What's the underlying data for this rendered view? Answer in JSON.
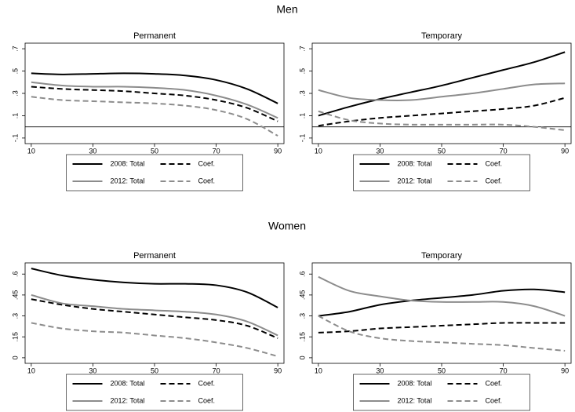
{
  "section_titles": [
    "Men",
    "Women"
  ],
  "chart_data": [
    {
      "type": "line",
      "title": "Permanent",
      "x": [
        10,
        20,
        30,
        40,
        50,
        60,
        70,
        80,
        90
      ],
      "xlim": [
        8,
        92
      ],
      "xticks": [
        10,
        30,
        50,
        70,
        90
      ],
      "ylim": [
        -0.15,
        0.75
      ],
      "yticks": [
        {
          "value": -0.1,
          "label": "-.1"
        },
        {
          "value": 0.1,
          "label": ".1"
        },
        {
          "value": 0.3,
          "label": ".3"
        },
        {
          "value": 0.5,
          "label": ".5"
        },
        {
          "value": 0.7,
          "label": ".7"
        }
      ],
      "reference_line": 0,
      "series": [
        {
          "name": "2008: Total",
          "color": "#000000",
          "style": "solid",
          "values": [
            0.48,
            0.47,
            0.475,
            0.48,
            0.475,
            0.46,
            0.42,
            0.34,
            0.21
          ]
        },
        {
          "name": "Coef.",
          "color": "#000000",
          "style": "dashed",
          "values": [
            0.36,
            0.34,
            0.33,
            0.32,
            0.3,
            0.28,
            0.24,
            0.17,
            0.05
          ]
        },
        {
          "name": "2012: Total",
          "color": "#8c8c8c",
          "style": "solid",
          "values": [
            0.4,
            0.37,
            0.36,
            0.36,
            0.35,
            0.33,
            0.28,
            0.2,
            0.08
          ]
        },
        {
          "name": "Coef.",
          "color": "#8c8c8c",
          "style": "dashed",
          "values": [
            0.27,
            0.24,
            0.23,
            0.22,
            0.21,
            0.19,
            0.15,
            0.07,
            -0.08
          ]
        }
      ]
    },
    {
      "type": "line",
      "title": "Temporary",
      "x": [
        10,
        20,
        30,
        40,
        50,
        60,
        70,
        80,
        90
      ],
      "xlim": [
        8,
        92
      ],
      "xticks": [
        10,
        30,
        50,
        70,
        90
      ],
      "ylim": [
        -0.15,
        0.75
      ],
      "yticks": [
        {
          "value": -0.1,
          "label": "-.1"
        },
        {
          "value": 0.1,
          "label": ".1"
        },
        {
          "value": 0.3,
          "label": ".3"
        },
        {
          "value": 0.5,
          "label": ".5"
        },
        {
          "value": 0.7,
          "label": ".7"
        }
      ],
      "reference_line": 0,
      "series": [
        {
          "name": "2008: Total",
          "color": "#000000",
          "style": "solid",
          "values": [
            0.1,
            0.18,
            0.25,
            0.31,
            0.37,
            0.44,
            0.51,
            0.58,
            0.67
          ]
        },
        {
          "name": "Coef.",
          "color": "#000000",
          "style": "dashed",
          "values": [
            0.01,
            0.05,
            0.08,
            0.1,
            0.12,
            0.14,
            0.16,
            0.19,
            0.26
          ]
        },
        {
          "name": "2012: Total",
          "color": "#8c8c8c",
          "style": "solid",
          "values": [
            0.33,
            0.26,
            0.24,
            0.24,
            0.27,
            0.3,
            0.34,
            0.38,
            0.39
          ]
        },
        {
          "name": "Coef.",
          "color": "#8c8c8c",
          "style": "dashed",
          "values": [
            0.14,
            0.06,
            0.03,
            0.02,
            0.02,
            0.02,
            0.02,
            0.0,
            -0.03
          ]
        }
      ]
    },
    {
      "type": "line",
      "title": "Permanent",
      "x": [
        10,
        20,
        30,
        40,
        50,
        60,
        70,
        80,
        90
      ],
      "xlim": [
        8,
        92
      ],
      "xticks": [
        10,
        30,
        50,
        70,
        90
      ],
      "ylim": [
        -0.04,
        0.68
      ],
      "yticks": [
        0,
        {
          "value": 0.15,
          "label": ".15"
        },
        {
          "value": 0.3,
          "label": ".3"
        },
        {
          "value": 0.45,
          "label": ".45"
        },
        {
          "value": 0.6,
          "label": ".6"
        }
      ],
      "series": [
        {
          "name": "2008: Total",
          "color": "#000000",
          "style": "solid",
          "values": [
            0.64,
            0.59,
            0.56,
            0.54,
            0.53,
            0.53,
            0.52,
            0.47,
            0.36
          ]
        },
        {
          "name": "Coef.",
          "color": "#000000",
          "style": "dashed",
          "values": [
            0.42,
            0.38,
            0.35,
            0.33,
            0.31,
            0.29,
            0.27,
            0.23,
            0.14
          ]
        },
        {
          "name": "2012: Total",
          "color": "#8c8c8c",
          "style": "solid",
          "values": [
            0.45,
            0.39,
            0.37,
            0.35,
            0.34,
            0.33,
            0.31,
            0.26,
            0.16
          ]
        },
        {
          "name": "Coef.",
          "color": "#8c8c8c",
          "style": "dashed",
          "values": [
            0.25,
            0.21,
            0.19,
            0.18,
            0.16,
            0.14,
            0.11,
            0.07,
            0.01
          ]
        }
      ]
    },
    {
      "type": "line",
      "title": "Temporary",
      "x": [
        10,
        20,
        30,
        40,
        50,
        60,
        70,
        80,
        90
      ],
      "xlim": [
        8,
        92
      ],
      "xticks": [
        10,
        30,
        50,
        70,
        90
      ],
      "ylim": [
        -0.04,
        0.68
      ],
      "yticks": [
        0,
        {
          "value": 0.15,
          "label": ".15"
        },
        {
          "value": 0.3,
          "label": ".3"
        },
        {
          "value": 0.45,
          "label": ".45"
        },
        {
          "value": 0.6,
          "label": ".6"
        }
      ],
      "series": [
        {
          "name": "2008: Total",
          "color": "#000000",
          "style": "solid",
          "values": [
            0.3,
            0.33,
            0.38,
            0.41,
            0.43,
            0.45,
            0.48,
            0.49,
            0.47
          ]
        },
        {
          "name": "Coef.",
          "color": "#000000",
          "style": "dashed",
          "values": [
            0.18,
            0.19,
            0.21,
            0.22,
            0.23,
            0.24,
            0.25,
            0.25,
            0.25
          ]
        },
        {
          "name": "2012: Total",
          "color": "#8c8c8c",
          "style": "solid",
          "values": [
            0.58,
            0.48,
            0.44,
            0.41,
            0.4,
            0.4,
            0.4,
            0.37,
            0.3
          ]
        },
        {
          "name": "Coef.",
          "color": "#8c8c8c",
          "style": "dashed",
          "values": [
            0.3,
            0.19,
            0.14,
            0.12,
            0.11,
            0.1,
            0.09,
            0.07,
            0.05
          ]
        }
      ]
    }
  ]
}
